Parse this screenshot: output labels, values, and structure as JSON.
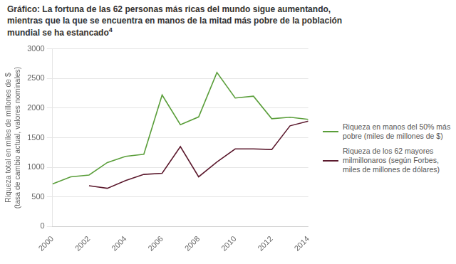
{
  "chart_data": {
    "type": "line",
    "title": "Gráfico: La fortuna de las 62 personas más ricas del mundo sigue aumentando,\nmientras que la que se encuentra en manos de la mitad más pobre de la población\nmundial se ha estancado",
    "annotations": [
      "4"
    ],
    "ylabel": "Riqueza total en miles de millones de $\n(tasa de cambio actual, valores nominales)",
    "series": [
      {
        "name": "Riqueza en manos del 50% más\npobre (miles de millones de $)",
        "color": "#5a9e3a",
        "x": [
          2000,
          2001,
          2002,
          2003,
          2004,
          2005,
          2006,
          2007,
          2008,
          2009,
          2010,
          2011,
          2012,
          2013,
          2014
        ],
        "values": [
          720,
          840,
          870,
          1080,
          1185,
          1220,
          2220,
          1720,
          1850,
          2600,
          2170,
          2200,
          1820,
          1845,
          1810
        ]
      },
      {
        "name": "Riqueza de los 62 mayores\nmilmillonaros (según Forbes,\nmiles de millones de dólares)",
        "color": "#5c1a2e",
        "x": [
          2002,
          2003,
          2004,
          2005,
          2006,
          2007,
          2008,
          2009,
          2010,
          2011,
          2012,
          2013,
          2014
        ],
        "values": [
          690,
          645,
          775,
          880,
          900,
          1350,
          840,
          1090,
          1310,
          1310,
          1300,
          1700,
          1780
        ]
      }
    ],
    "xlim": [
      2000,
      2014
    ],
    "xticks": [
      2000,
      2002,
      2004,
      2006,
      2008,
      2010,
      2012,
      2014
    ],
    "ylim": [
      0,
      3000
    ],
    "yticks": [
      0,
      500,
      1000,
      1500,
      2000,
      2500,
      3000
    ],
    "grid": "y",
    "legend": "right"
  }
}
